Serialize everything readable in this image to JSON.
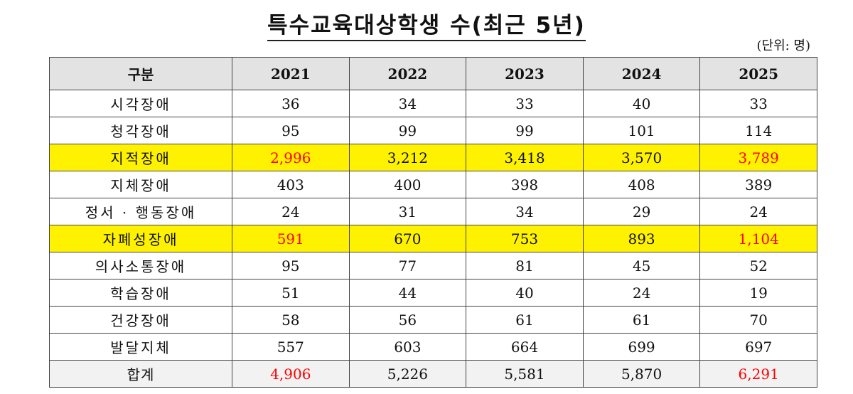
{
  "title": "특수교육대상학생 수(최근 5년)",
  "unit": "(단위: 명)",
  "table": {
    "headers": [
      "구분",
      "2021",
      "2022",
      "2023",
      "2024",
      "2025"
    ],
    "rows": [
      {
        "cat": "시각장애",
        "values": [
          "36",
          "34",
          "33",
          "40",
          "33"
        ]
      },
      {
        "cat": "청각장애",
        "values": [
          "95",
          "99",
          "99",
          "101",
          "114"
        ]
      },
      {
        "cat": "지적장애",
        "values": [
          "2,996",
          "3,212",
          "3,418",
          "3,570",
          "3,789"
        ],
        "highlight": true,
        "red_columns": [
          0,
          4
        ]
      },
      {
        "cat": "지체장애",
        "values": [
          "403",
          "400",
          "398",
          "408",
          "389"
        ]
      },
      {
        "cat": "정서 · 행동장애",
        "values": [
          "24",
          "31",
          "34",
          "29",
          "24"
        ]
      },
      {
        "cat": "자폐성장애",
        "values": [
          "591",
          "670",
          "753",
          "893",
          "1,104"
        ],
        "highlight": true,
        "red_columns": [
          0,
          4
        ]
      },
      {
        "cat": "의사소통장애",
        "values": [
          "95",
          "77",
          "81",
          "45",
          "52"
        ]
      },
      {
        "cat": "학습장애",
        "values": [
          "51",
          "44",
          "40",
          "24",
          "19"
        ]
      },
      {
        "cat": "건강장애",
        "values": [
          "58",
          "56",
          "61",
          "61",
          "70"
        ]
      },
      {
        "cat": "발달지체",
        "values": [
          "557",
          "603",
          "664",
          "699",
          "697"
        ]
      },
      {
        "cat": "합계",
        "values": [
          "4,906",
          "5,226",
          "5,581",
          "5,870",
          "6,291"
        ],
        "total": true,
        "red_columns": [
          0,
          4
        ]
      }
    ]
  },
  "colors": {
    "highlight": "#fff200",
    "emphasis": "#ff0000",
    "header_bg": "#e3e3e3"
  }
}
